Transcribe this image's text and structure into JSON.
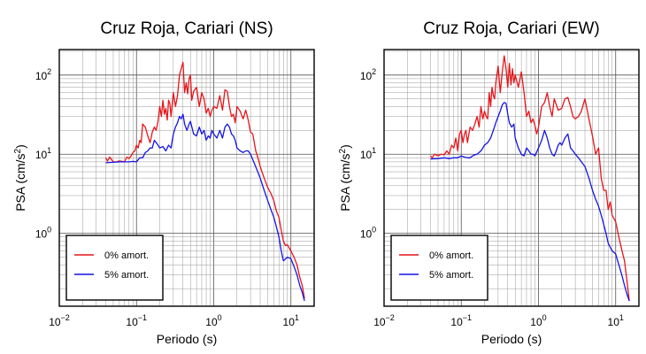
{
  "chart_data": [
    {
      "type": "line",
      "title": "Cruz Roja, Cariari (NS)",
      "xlabel": "Periodo (s)",
      "ylabel": "PSA (cm/s2)",
      "xscale": "log",
      "yscale": "log",
      "xlim": [
        0.01,
        20
      ],
      "ylim": [
        0.12,
        210
      ],
      "grid": true,
      "legend_position": "bottom-left",
      "x_ticks": [
        {
          "value": 0.01,
          "base": "10",
          "exp": "−2"
        },
        {
          "value": 0.1,
          "base": "10",
          "exp": "−1"
        },
        {
          "value": 1,
          "base": "10",
          "exp": "0"
        },
        {
          "value": 10,
          "base": "10",
          "exp": "1"
        }
      ],
      "y_ticks": [
        {
          "value": 1,
          "base": "10",
          "exp": "0"
        },
        {
          "value": 10,
          "base": "10",
          "exp": "1"
        },
        {
          "value": 100,
          "base": "10",
          "exp": "2"
        }
      ],
      "series": [
        {
          "name": "0% amort.",
          "color": "#e8141a",
          "x": [
            0.04,
            0.042,
            0.045,
            0.05,
            0.055,
            0.06,
            0.065,
            0.07,
            0.075,
            0.08,
            0.085,
            0.09,
            0.095,
            0.1,
            0.105,
            0.11,
            0.115,
            0.12,
            0.13,
            0.14,
            0.15,
            0.16,
            0.17,
            0.18,
            0.19,
            0.2,
            0.21,
            0.22,
            0.23,
            0.24,
            0.25,
            0.26,
            0.27,
            0.28,
            0.3,
            0.32,
            0.34,
            0.36,
            0.38,
            0.4,
            0.42,
            0.44,
            0.46,
            0.48,
            0.5,
            0.52,
            0.55,
            0.6,
            0.65,
            0.7,
            0.75,
            0.8,
            0.85,
            0.9,
            0.95,
            1.0,
            1.1,
            1.2,
            1.3,
            1.4,
            1.5,
            1.6,
            1.7,
            1.8,
            1.9,
            2.0,
            2.2,
            2.4,
            2.6,
            2.8,
            3.0,
            3.2,
            3.5,
            3.8,
            4.0,
            4.5,
            5.0,
            5.5,
            6.0,
            6.5,
            7.0,
            7.5,
            8.0,
            8.5,
            9.0,
            10.0,
            11.0,
            12.0,
            13.0,
            14.0,
            15.0
          ],
          "y": [
            9.0,
            8.2,
            9.2,
            8.0,
            8.0,
            8.2,
            8.1,
            8.0,
            9.2,
            8.8,
            9.5,
            10.5,
            11.0,
            13.0,
            12.0,
            15.0,
            14.0,
            24.0,
            22.0,
            17.0,
            14.0,
            19.0,
            22.0,
            20.0,
            26.0,
            40.0,
            30.0,
            48.0,
            32.0,
            38.0,
            27.0,
            48.0,
            44.0,
            30.0,
            60.0,
            40.0,
            55.0,
            100.0,
            120.0,
            145.0,
            60.0,
            80.0,
            58.0,
            90.0,
            100.0,
            48.0,
            62.0,
            70.0,
            40.0,
            60.0,
            50.0,
            33.0,
            38.0,
            30.0,
            36.0,
            40.0,
            38.0,
            55.0,
            36.0,
            65.0,
            62.0,
            40.0,
            30.0,
            32.0,
            25.0,
            40.0,
            35.0,
            28.0,
            36.0,
            27.0,
            19.0,
            18.0,
            11.0,
            8.5,
            7.0,
            5.0,
            3.8,
            3.2,
            2.6,
            1.9,
            1.6,
            1.1,
            0.8,
            0.7,
            0.72,
            0.6,
            0.5,
            0.4,
            0.28,
            0.22,
            0.15
          ]
        },
        {
          "name": "5% amort.",
          "color": "#1414e6",
          "x": [
            0.04,
            0.05,
            0.06,
            0.07,
            0.08,
            0.09,
            0.1,
            0.11,
            0.12,
            0.13,
            0.14,
            0.15,
            0.16,
            0.17,
            0.18,
            0.19,
            0.2,
            0.22,
            0.24,
            0.26,
            0.28,
            0.3,
            0.32,
            0.34,
            0.36,
            0.38,
            0.4,
            0.42,
            0.45,
            0.48,
            0.5,
            0.55,
            0.6,
            0.65,
            0.7,
            0.75,
            0.8,
            0.85,
            0.9,
            0.95,
            1.0,
            1.1,
            1.2,
            1.3,
            1.4,
            1.5,
            1.6,
            1.7,
            1.8,
            1.9,
            2.0,
            2.2,
            2.4,
            2.6,
            2.8,
            3.0,
            3.3,
            3.6,
            4.0,
            4.5,
            5.0,
            5.5,
            6.0,
            6.5,
            7.0,
            7.5,
            8.0,
            9.0,
            10.0,
            11.0,
            12.0,
            13.0,
            14.0,
            15.0
          ],
          "y": [
            7.8,
            7.9,
            8.0,
            8.0,
            8.0,
            8.1,
            8.0,
            9.0,
            9.0,
            10.5,
            11.0,
            12.0,
            12.0,
            15.0,
            14.0,
            13.0,
            12.0,
            12.5,
            11.0,
            13.0,
            12.0,
            18.0,
            22.0,
            25.0,
            30.0,
            28.0,
            32.0,
            24.0,
            20.0,
            24.0,
            26.0,
            18.0,
            17.0,
            22.0,
            18.0,
            20.0,
            15.0,
            17.0,
            16.0,
            20.0,
            18.0,
            16.0,
            20.0,
            16.0,
            22.0,
            24.0,
            22.0,
            18.0,
            17.0,
            15.0,
            12.0,
            11.0,
            10.5,
            11.0,
            11.0,
            10.0,
            8.0,
            6.5,
            5.0,
            3.5,
            2.6,
            2.0,
            1.6,
            1.2,
            0.9,
            0.6,
            0.45,
            0.5,
            0.48,
            0.38,
            0.3,
            0.22,
            0.18,
            0.14
          ]
        }
      ],
      "legend_labels": [
        "0% amort.",
        "5% amort."
      ]
    },
    {
      "type": "line",
      "title": "Cruz Roja, Cariari (EW)",
      "xlabel": "Periodo (s)",
      "ylabel": "PSA (cm/s2)",
      "xscale": "log",
      "yscale": "log",
      "xlim": [
        0.01,
        20
      ],
      "ylim": [
        0.12,
        210
      ],
      "grid": true,
      "legend_position": "bottom-left",
      "x_ticks": [
        {
          "value": 0.01,
          "base": "10",
          "exp": "−2"
        },
        {
          "value": 0.1,
          "base": "10",
          "exp": "−1"
        },
        {
          "value": 1,
          "base": "10",
          "exp": "0"
        },
        {
          "value": 10,
          "base": "10",
          "exp": "1"
        }
      ],
      "y_ticks": [
        {
          "value": 1,
          "base": "10",
          "exp": "0"
        },
        {
          "value": 10,
          "base": "10",
          "exp": "1"
        },
        {
          "value": 100,
          "base": "10",
          "exp": "2"
        }
      ],
      "series": [
        {
          "name": "0% amort.",
          "color": "#e8141a",
          "x": [
            0.04,
            0.042,
            0.045,
            0.05,
            0.055,
            0.06,
            0.065,
            0.07,
            0.075,
            0.08,
            0.085,
            0.09,
            0.095,
            0.1,
            0.105,
            0.11,
            0.115,
            0.12,
            0.13,
            0.14,
            0.15,
            0.16,
            0.17,
            0.18,
            0.19,
            0.2,
            0.21,
            0.22,
            0.23,
            0.24,
            0.25,
            0.26,
            0.27,
            0.28,
            0.3,
            0.32,
            0.34,
            0.36,
            0.38,
            0.4,
            0.42,
            0.44,
            0.46,
            0.48,
            0.5,
            0.55,
            0.6,
            0.65,
            0.7,
            0.75,
            0.8,
            0.85,
            0.9,
            0.95,
            1.0,
            1.1,
            1.2,
            1.3,
            1.4,
            1.5,
            1.6,
            1.8,
            2.0,
            2.2,
            2.4,
            2.6,
            2.8,
            3.0,
            3.3,
            3.6,
            4.0,
            4.5,
            5.0,
            5.5,
            6.0,
            6.5,
            7.0,
            7.5,
            8.0,
            8.5,
            9.0,
            10.0,
            11.0,
            12.0,
            13.0,
            14.0,
            15.0
          ],
          "y": [
            9.5,
            9.0,
            10.0,
            9.5,
            10.0,
            9.8,
            11.0,
            10.0,
            13.0,
            12.0,
            16.0,
            11.0,
            18.0,
            20.0,
            14.0,
            18.0,
            20.0,
            14.0,
            22.0,
            20.0,
            24.0,
            30.0,
            22.0,
            40.0,
            28.0,
            35.0,
            30.0,
            28.0,
            60.0,
            40.0,
            70.0,
            55.0,
            50.0,
            80.0,
            130.0,
            60.0,
            110.0,
            175.0,
            120.0,
            70.0,
            140.0,
            75.0,
            120.0,
            80.0,
            100.0,
            70.0,
            110.0,
            60.0,
            30.0,
            35.0,
            25.0,
            28.0,
            23.0,
            18.0,
            22.0,
            40.0,
            45.0,
            60.0,
            40.0,
            30.0,
            50.0,
            36.0,
            38.0,
            50.0,
            52.0,
            40.0,
            30.0,
            28.0,
            30.0,
            35.0,
            50.0,
            28.0,
            17.0,
            10.0,
            12.0,
            5.0,
            3.5,
            3.5,
            2.0,
            2.5,
            1.7,
            1.4,
            0.9,
            0.62,
            0.45,
            0.25,
            0.14
          ]
        },
        {
          "name": "5% amort.",
          "color": "#1414e6",
          "x": [
            0.04,
            0.05,
            0.06,
            0.07,
            0.08,
            0.09,
            0.1,
            0.11,
            0.12,
            0.13,
            0.14,
            0.15,
            0.16,
            0.17,
            0.18,
            0.19,
            0.2,
            0.22,
            0.24,
            0.26,
            0.28,
            0.3,
            0.32,
            0.34,
            0.36,
            0.38,
            0.4,
            0.42,
            0.45,
            0.48,
            0.5,
            0.55,
            0.6,
            0.65,
            0.7,
            0.75,
            0.8,
            0.85,
            0.9,
            1.0,
            1.1,
            1.2,
            1.3,
            1.4,
            1.5,
            1.6,
            1.7,
            1.8,
            1.9,
            2.0,
            2.2,
            2.4,
            2.6,
            2.8,
            3.0,
            3.3,
            3.6,
            4.0,
            4.5,
            5.0,
            5.5,
            6.0,
            6.5,
            7.0,
            7.5,
            8.0,
            9.0,
            10.0,
            11.0,
            12.0,
            13.0,
            14.0,
            15.0
          ],
          "y": [
            8.7,
            8.8,
            9.0,
            8.8,
            9.0,
            9.0,
            9.5,
            9.2,
            9.0,
            9.0,
            9.5,
            9.8,
            10.0,
            10.5,
            11.0,
            12.0,
            13.0,
            14.0,
            16.0,
            20.0,
            25.0,
            30.0,
            35.0,
            42.0,
            45.0,
            44.0,
            32.0,
            25.0,
            22.0,
            24.0,
            16.0,
            12.0,
            10.0,
            9.5,
            12.0,
            11.0,
            10.0,
            10.0,
            9.5,
            12.0,
            15.0,
            20.0,
            16.0,
            12.0,
            10.0,
            9.5,
            11.0,
            13.0,
            14.0,
            13.0,
            16.0,
            18.0,
            12.0,
            11.0,
            10.0,
            9.0,
            8.0,
            7.0,
            5.0,
            3.5,
            2.7,
            2.2,
            1.7,
            1.3,
            1.0,
            0.75,
            0.6,
            0.55,
            0.4,
            0.3,
            0.22,
            0.17,
            0.14
          ]
        }
      ],
      "legend_labels": [
        "0% amort.",
        "5% amort."
      ]
    }
  ]
}
